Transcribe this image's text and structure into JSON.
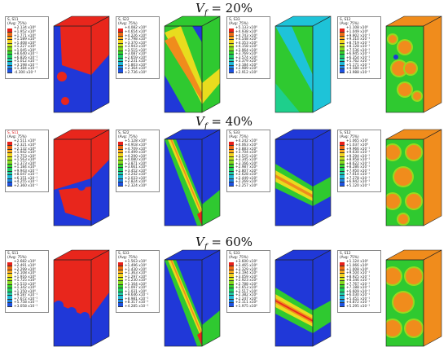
{
  "rows": [
    {
      "prefix": "V",
      "sub": "f",
      "eq": " = 20%"
    },
    {
      "prefix": "V",
      "sub": "f",
      "eq": " = 40%"
    },
    {
      "prefix": "V",
      "sub": "f",
      "eq": " = 60%"
    }
  ],
  "panels": [
    [
      {
        "var": "S, S11",
        "red_title": false,
        "avg": "(Avg: 75%)",
        "vals": [
          "+2.134 x10⁰",
          "+1.952 x10⁰",
          "+1.771 x10⁰",
          "+1.589 x10⁰",
          "+1.408 x10⁰",
          "+1.227 x10⁰",
          "+1.045 x10⁰",
          "+8.640 x10⁻¹",
          "+6.826 x10⁻¹",
          "+5.012 x10⁻¹",
          "+3.198 x10⁻¹",
          "+1.384 x10⁻¹",
          "-4.300 x10⁻²"
        ]
      },
      {
        "var": "S, S22",
        "red_title": false,
        "avg": "(Avg: 75%)",
        "vals": [
          "+4.082 x10⁰",
          "+4.654 x10⁰",
          "+4.226 x10⁰",
          "+3.798 x10⁰",
          "+3.370 x10⁰",
          "+3.943 x10⁰",
          "+3.515 x10⁰",
          "+3.087 x10⁰",
          "+2.659 x10⁰",
          "+2.231 x10⁰",
          "+1.803 x10⁰",
          "+2.364 x10⁰",
          "+2.736 x10⁰"
        ]
      },
      {
        "var": "S, S33",
        "red_title": false,
        "avg": "(Avg: 75%)",
        "vals": [
          "+5.133 x10⁰",
          "+4.938 x10⁰",
          "+4.743 x10⁰",
          "+4.548 x10⁰",
          "+4.353 x10⁰",
          "+4.158 x10⁰",
          "+3.964 x10⁰",
          "+3.769 x10⁰",
          "+3.574 x10⁰",
          "+3.379 x10⁰",
          "+3.184 x10⁰",
          "+2.989 x10⁰",
          "+2.912 x10⁰"
        ]
      },
      {
        "var": "S, S12",
        "red_title": false,
        "avg": "(Avg: 75%)",
        "vals": [
          "+1.108 x10⁰",
          "+1.049 x10⁰",
          "+9.902 x10⁻¹",
          "+9.310 x10⁻¹",
          "+8.719 x10⁻¹",
          "+8.128 x10⁻¹",
          "+7.536 x10⁻¹",
          "+6.945 x10⁻¹",
          "+6.354 x10⁻¹",
          "+5.762 x10⁻¹",
          "+5.171 x10⁻¹",
          "+4.580 x10⁻¹",
          "+3.988 x10⁻¹"
        ]
      }
    ],
    [
      {
        "var": "S, S11",
        "red_title": true,
        "avg": "(Avg: 75%)",
        "vals": [
          "+2.511 x10⁰",
          "+2.321 x10⁰",
          "+2.132 x10⁰",
          "+1.942 x10⁰",
          "+1.753 x10⁰",
          "+1.563 x10⁰",
          "+1.373 x10⁰",
          "+1.184 x10⁰",
          "+9.943 x10⁻¹",
          "+8.047 x10⁻¹",
          "+6.151 x10⁻¹",
          "+4.255 x10⁻¹",
          "+2.360 x10⁻¹"
        ]
      },
      {
        "var": "S, S22",
        "red_title": false,
        "avg": "(Avg: 75%)",
        "vals": [
          "+5.128 x10⁰",
          "+4.918 x10⁰",
          "+4.709 x10⁰",
          "+4.499 x10⁰",
          "+4.290 x10⁰",
          "+4.080 x10⁰",
          "+3.871 x10⁰",
          "+3.661 x10⁰",
          "+3.452 x10⁰",
          "+3.242 x10⁰",
          "+3.033 x10⁰",
          "+2.824 x10⁰",
          "+2.324 x10⁰"
        ]
      },
      {
        "var": "S, S33",
        "red_title": false,
        "avg": "(Avg: 75%)",
        "vals": [
          "+4.242 x10⁰",
          "+4.063 x10⁰",
          "+3.883 x10⁰",
          "+3.704 x10⁰",
          "+3.525 x10⁰",
          "+3.345 x10⁰",
          "+3.166 x10⁰",
          "+2.987 x10⁰",
          "+2.807 x10⁰",
          "+2.628 x10⁰",
          "+2.449 x10⁰",
          "+2.269 x10⁰",
          "+2.257 x10⁰"
        ]
      },
      {
        "var": "S, S12",
        "red_title": false,
        "avg": "(Avg: 75%)",
        "vals": [
          "+1.065 x10⁰",
          "+1.037 x10⁰",
          "+9.966 x10⁻¹",
          "+9.630 x10⁻¹",
          "+9.294 x10⁻¹",
          "+8.958 x10⁻¹",
          "+8.622 x10⁻¹",
          "+8.286 x10⁻¹",
          "+7.950 x10⁻¹",
          "+7.614 x10⁻¹",
          "+7.278 x10⁻¹",
          "+6.942 x10⁻¹",
          "+5.120 x10⁻¹"
        ]
      }
    ],
    [
      {
        "var": "S, S11",
        "red_title": false,
        "avg": "(Avg: 75%)",
        "vals": [
          "+2.682 x10⁰",
          "+2.491 x10⁰",
          "+2.299 x10⁰",
          "+2.108 x10⁰",
          "+1.916 x10⁰",
          "+1.725 x10⁰",
          "+1.533 x10⁰",
          "+1.342 x10⁰",
          "+1.150 x10⁰",
          "+9.587 x10⁻¹",
          "+7.672 x10⁻¹",
          "+5.758 x10⁻¹",
          "+3.058 x10⁻¹"
        ]
      },
      {
        "var": "S, S33",
        "red_title": false,
        "avg": "(Avg: 75%)",
        "vals": [
          "+1.563 x10⁰",
          "+1.496 x10⁰",
          "+1.430 x10⁰",
          "+1.363 x10⁰",
          "+1.297 x10⁰",
          "+1.230 x10⁰",
          "+1.164 x10⁰",
          "+1.097 x10⁰",
          "+1.031 x10⁰",
          "+9.646 x10⁻¹",
          "+8.981 x10⁻¹",
          "+8.317 x10⁻¹",
          "+4.285 x10⁻¹"
        ]
      },
      {
        "var": "S, S33",
        "red_title": false,
        "avg": "(Avg: 75%)",
        "vals": [
          "+3.600 x10⁰",
          "+3.465 x10⁰",
          "+3.329 x10⁰",
          "+3.194 x10⁰",
          "+3.059 x10⁰",
          "+2.923 x10⁰",
          "+2.788 x10⁰",
          "+2.653 x10⁰",
          "+2.517 x10⁰",
          "+2.382 x10⁰",
          "+2.247 x10⁰",
          "+2.111 x10⁰",
          "+1.975 x10⁰"
        ]
      },
      {
        "var": "S, S12",
        "red_title": false,
        "avg": "(Avg: 75%)",
        "vals": [
          "+1.124 x10⁰",
          "+1.066 x10⁰",
          "+1.008 x10⁰",
          "+9.504 x10⁻¹",
          "+8.925 x10⁻¹",
          "+8.346 x10⁻¹",
          "+7.767 x10⁻¹",
          "+7.188 x10⁻¹",
          "+6.609 x10⁻¹",
          "+6.030 x10⁻¹",
          "+5.451 x10⁻¹",
          "+4.872 x10⁻¹",
          "+5.295 x10⁻¹"
        ]
      }
    ]
  ],
  "scale_colors": [
    "#e8201a",
    "#f06a14",
    "#f5a51c",
    "#f2d21e",
    "#c6e21c",
    "#84d81e",
    "#34d22a",
    "#1dcd62",
    "#1ec9a2",
    "#1eb7d6",
    "#1e86e0",
    "#1e52e0",
    "#1e20cc"
  ],
  "contour_colors": {
    "red": "#e8261c",
    "orange": "#f08c1c",
    "yellow": "#e8dc1e",
    "lime": "#9ad81e",
    "green": "#2fc930",
    "teal": "#1ecf8c",
    "cyan": "#1ec3d8",
    "blue": "#2038d8",
    "darkblue": "#1a28b8",
    "edge": "#222222"
  }
}
